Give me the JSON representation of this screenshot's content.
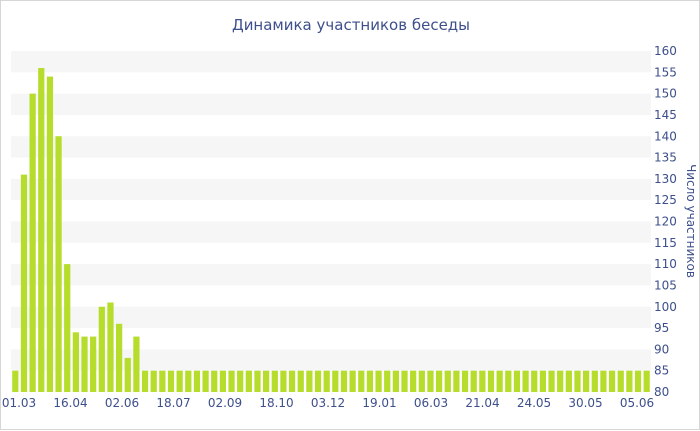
{
  "chart_data": {
    "type": "bar",
    "title": "Динамика участников беседы",
    "xlabel": "",
    "ylabel": "Число участников",
    "ylim": [
      80,
      160
    ],
    "y_ticks": [
      80,
      85,
      90,
      95,
      100,
      105,
      110,
      115,
      120,
      125,
      130,
      135,
      140,
      145,
      150,
      155,
      160
    ],
    "y_axis_side": "right",
    "grid": "horizontal alternating bands",
    "legend": "none",
    "x_tick_labels": [
      "01.03",
      "16.04",
      "02.06",
      "18.07",
      "02.09",
      "18.10",
      "03.12",
      "19.01",
      "06.03",
      "21.04",
      "24.05",
      "30.05",
      "05.06"
    ],
    "bar_color": "#b6dc2c",
    "band_color": "#f6f6f6",
    "text_color": "#3d4f8c",
    "values": [
      85,
      131,
      150,
      156,
      154,
      140,
      110,
      94,
      93,
      93,
      100,
      101,
      96,
      88,
      93,
      85,
      85,
      85,
      85,
      85,
      85,
      85,
      85,
      85,
      85,
      85,
      85,
      85,
      85,
      85,
      85,
      85,
      85,
      85,
      85,
      85,
      85,
      85,
      85,
      85,
      85,
      85,
      85,
      85,
      85,
      85,
      85,
      85,
      85,
      85,
      85,
      85,
      85,
      85,
      85,
      85,
      85,
      85,
      85,
      85,
      85,
      85,
      85,
      85,
      85,
      85,
      85,
      85,
      85,
      85,
      85,
      85,
      85,
      85
    ]
  }
}
